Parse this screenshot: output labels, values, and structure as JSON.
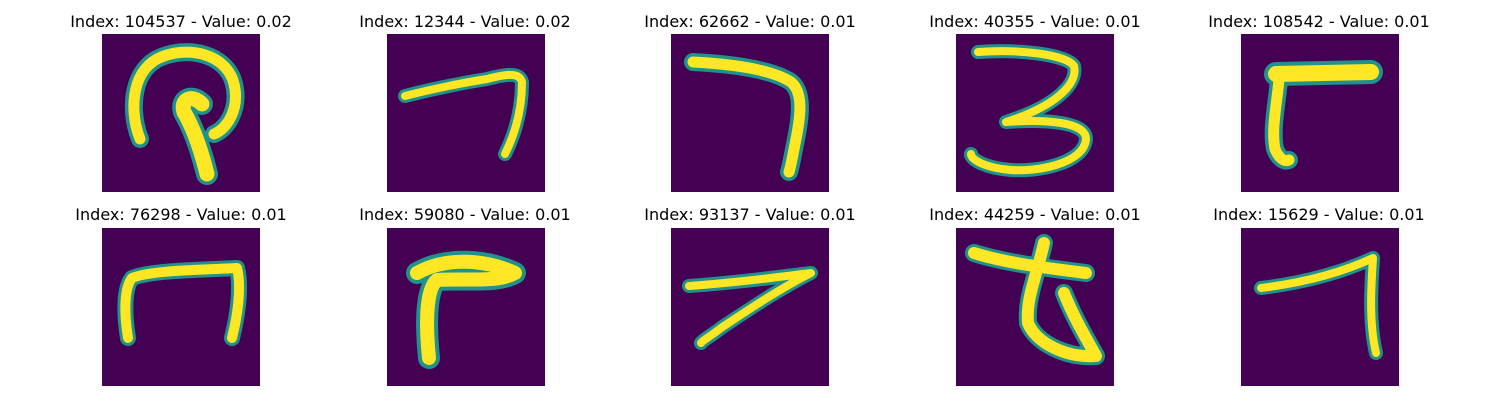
{
  "figure": {
    "panels": [
      {
        "title": "Index: 104537 - Value: 0.02",
        "glyph": "hooked-stroke"
      },
      {
        "title": "Index: 12344 - Value: 0.02",
        "glyph": "seven"
      },
      {
        "title": "Index: 62662 - Value: 0.01",
        "glyph": "seven"
      },
      {
        "title": "Index: 40355 - Value: 0.01",
        "glyph": "three"
      },
      {
        "title": "Index: 108542 - Value: 0.01",
        "glyph": "seven"
      },
      {
        "title": "Index: 76298 - Value: 0.01",
        "glyph": "arch"
      },
      {
        "title": "Index: 59080 - Value: 0.01",
        "glyph": "seven"
      },
      {
        "title": "Index: 93137 - Value: 0.01",
        "glyph": "seven"
      },
      {
        "title": "Index: 44259 - Value: 0.01",
        "glyph": "crossed-loop"
      },
      {
        "title": "Index: 15629 - Value: 0.01",
        "glyph": "seven"
      }
    ],
    "colors": {
      "background": "#440154",
      "stroke": "#fde725",
      "edge": "#21918c"
    }
  }
}
